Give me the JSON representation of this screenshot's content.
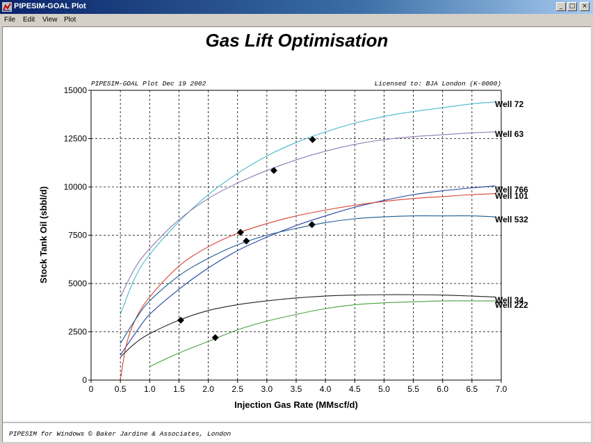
{
  "window": {
    "title": "PIPESIM-GOAL Plot",
    "menu": [
      "File",
      "Edit",
      "View",
      "Plot"
    ],
    "buttons": {
      "minimize": "_",
      "maximize": "□",
      "close": "×"
    }
  },
  "icons": {
    "app": "pipesim-app-icon"
  },
  "colors": {
    "grid": "#000000",
    "marker": "#000000",
    "background": "#ffffff"
  },
  "chart_data": {
    "type": "line",
    "title": "Gas Lift Optimisation",
    "header_left": "PIPESIM-GOAL Plot Dec 19 2002",
    "header_right": "Licensed to: BJA London (K-0000)",
    "footer": "PIPESIM for Windows © Baker Jardine & Associates, London",
    "xlabel": "Injection Gas Rate (MMscf/d)",
    "ylabel": "Stock Tank Oil (sbbl/d)",
    "xlim": [
      0,
      7
    ],
    "ylim": [
      0,
      15000
    ],
    "xticks": [
      "0",
      "0.5",
      "1.0",
      "1.5",
      "2.0",
      "2.5",
      "3.0",
      "3.5",
      "4.0",
      "4.5",
      "5.0",
      "5.5",
      "6.0",
      "6.5",
      "7.0"
    ],
    "yticks": [
      "0",
      "2500",
      "5000",
      "7500",
      "10000",
      "12500",
      "15000"
    ],
    "grid": true,
    "series": [
      {
        "name": "Well 72",
        "color": "#49b8c8",
        "x": [
          0.5,
          0.75,
          1.0,
          1.5,
          2.0,
          2.5,
          3.0,
          3.5,
          4.0,
          4.5,
          5.0,
          5.5,
          6.0,
          6.5,
          6.9
        ],
        "y": [
          3400,
          5300,
          6500,
          8200,
          9600,
          10700,
          11600,
          12300,
          12850,
          13300,
          13650,
          13900,
          14100,
          14300,
          14400
        ],
        "marker": [
          3.78,
          12450
        ]
      },
      {
        "name": "Well 63",
        "color": "#8f78b0",
        "x": [
          0.5,
          0.75,
          1.0,
          1.5,
          2.0,
          2.5,
          3.0,
          3.5,
          4.0,
          4.5,
          5.0,
          5.5,
          6.0,
          6.5,
          6.9
        ],
        "y": [
          4300,
          5800,
          6800,
          8300,
          9400,
          10200,
          10850,
          11400,
          11850,
          12200,
          12450,
          12600,
          12700,
          12800,
          12850
        ],
        "marker": [
          3.12,
          10850
        ]
      },
      {
        "name": "Well 766",
        "color": "#2040a0",
        "x": [
          0.5,
          0.75,
          1.0,
          1.5,
          2.0,
          2.5,
          3.0,
          3.5,
          4.0,
          4.5,
          5.0,
          5.5,
          6.0,
          6.5,
          6.9
        ],
        "y": [
          1300,
          2400,
          3400,
          4700,
          5800,
          6700,
          7400,
          8000,
          8500,
          8950,
          9300,
          9600,
          9800,
          9950,
          10050
        ],
        "marker": [
          2.65,
          7200
        ]
      },
      {
        "name": "Well 101",
        "color": "#d84030",
        "x": [
          0.5,
          0.6,
          0.75,
          1.0,
          1.5,
          2.0,
          2.5,
          3.0,
          3.5,
          4.0,
          4.5,
          5.0,
          5.5,
          6.0,
          6.5,
          6.9
        ],
        "y": [
          0,
          1800,
          3100,
          4300,
          5900,
          6900,
          7600,
          8100,
          8500,
          8800,
          9050,
          9250,
          9400,
          9500,
          9600,
          9650
        ],
        "marker": [
          2.55,
          7650
        ]
      },
      {
        "name": "Well 532",
        "color": "#1a5a90",
        "x": [
          0.5,
          0.75,
          1.0,
          1.5,
          2.0,
          2.5,
          3.0,
          3.5,
          4.0,
          4.5,
          5.0,
          5.5,
          6.0,
          6.5,
          6.9
        ],
        "y": [
          1900,
          3100,
          4100,
          5400,
          6300,
          7000,
          7500,
          7850,
          8150,
          8350,
          8450,
          8500,
          8500,
          8500,
          8450
        ],
        "marker": [
          3.77,
          8050
        ]
      },
      {
        "name": "Well 34",
        "color": "#202020",
        "x": [
          0.5,
          0.75,
          1.0,
          1.5,
          2.0,
          2.5,
          3.0,
          3.5,
          4.0,
          4.5,
          5.0,
          5.5,
          6.0,
          6.5,
          6.9
        ],
        "y": [
          1200,
          1900,
          2400,
          3100,
          3600,
          3900,
          4100,
          4250,
          4350,
          4400,
          4420,
          4420,
          4400,
          4350,
          4300
        ],
        "marker": [
          1.53,
          3100
        ]
      },
      {
        "name": "Well 222",
        "color": "#4aa040",
        "x": [
          1.0,
          1.5,
          2.0,
          2.5,
          3.0,
          3.5,
          4.0,
          4.5,
          5.0,
          5.5,
          6.0,
          6.5,
          6.9
        ],
        "y": [
          700,
          1400,
          2000,
          2600,
          3050,
          3400,
          3700,
          3900,
          4000,
          4050,
          4100,
          4100,
          4100
        ],
        "marker": [
          2.12,
          2200
        ]
      }
    ],
    "label_order": [
      "Well 72",
      "Well 63",
      "Well 766",
      "Well 101",
      "Well 532",
      "Well 34",
      "Well 222"
    ]
  }
}
